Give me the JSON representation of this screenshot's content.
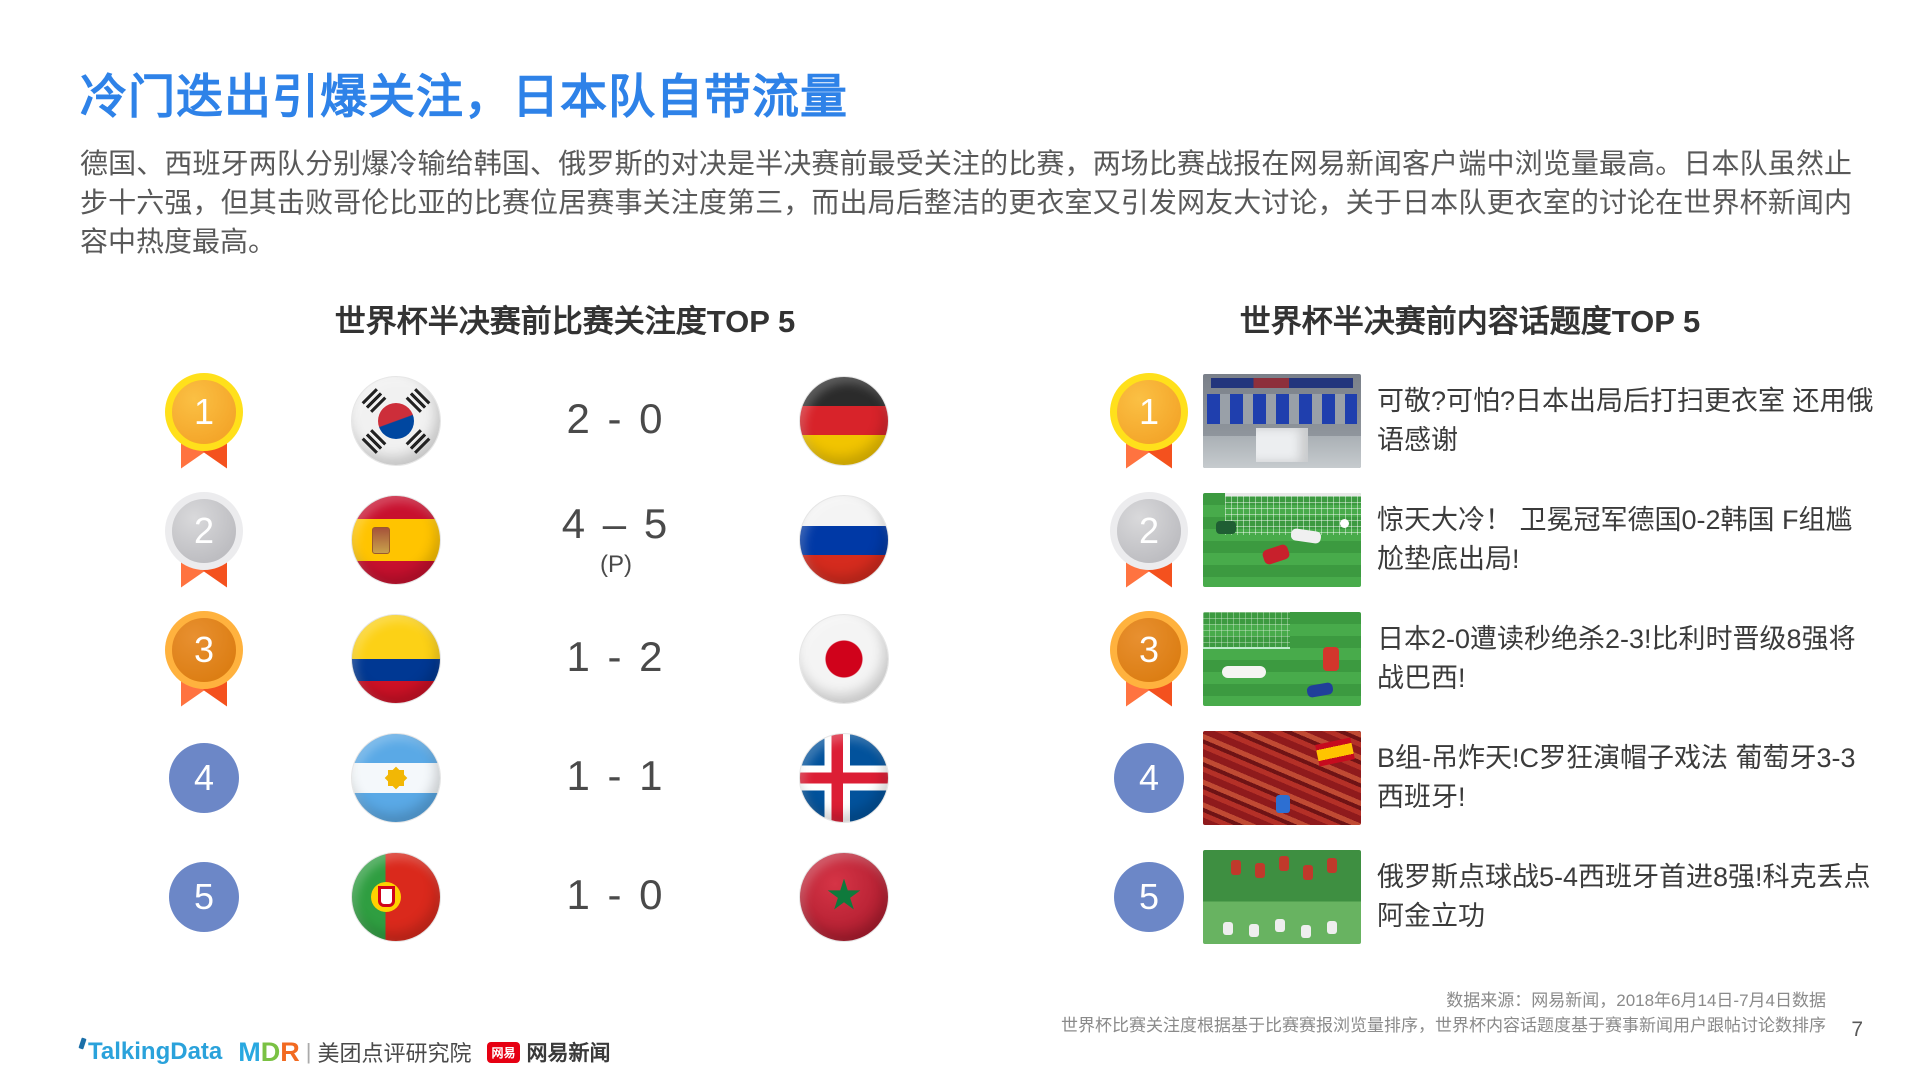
{
  "slide": {
    "title": "冷门迭出引爆关注，日本队自带流量",
    "paragraph": "德国、西班牙两队分别爆冷输给韩国、俄罗斯的对决是半决赛前最受关注的比赛，两场比赛战报在网易新闻客户端中浏览量最高。日本队虽然止步十六强，但其击败哥伦比亚的比赛位居赛事关注度第三，而出局后整洁的更衣室又引发网友大讨论，关于日本队更衣室的讨论在世界杯新闻内容中热度最高。",
    "page_number": "7"
  },
  "match_ranking": {
    "title": "世界杯半决赛前比赛关注度TOP 5",
    "rows": [
      {
        "rank": "1",
        "medal": "gold",
        "team_left": "south-korea",
        "score": "2 - 0",
        "score_note": "",
        "team_right": "germany"
      },
      {
        "rank": "2",
        "medal": "silver",
        "team_left": "spain",
        "score": "4 – 5",
        "score_note": "(P)",
        "team_right": "russia"
      },
      {
        "rank": "3",
        "medal": "bronze",
        "team_left": "colombia",
        "score": "1 - 2",
        "score_note": "",
        "team_right": "japan"
      },
      {
        "rank": "4",
        "medal": "blue",
        "team_left": "argentina",
        "score": "1 - 1",
        "score_note": "",
        "team_right": "iceland"
      },
      {
        "rank": "5",
        "medal": "blue",
        "team_left": "portugal",
        "score": "1 - 0",
        "score_note": "",
        "team_right": "morocco"
      }
    ]
  },
  "topic_ranking": {
    "title": "世界杯半决赛前内容话题度TOP 5",
    "rows": [
      {
        "rank": "1",
        "medal": "gold",
        "thumbnail": "japan-locker-room",
        "headline": "可敬?可怕?日本出局后打扫更衣室 还用俄语感谢"
      },
      {
        "rank": "2",
        "medal": "silver",
        "thumbnail": "germany-korea-goal",
        "headline": "惊天大冷！ 卫冕冠军德国0-2韩国 F组尴尬垫底出局!"
      },
      {
        "rank": "3",
        "medal": "bronze",
        "thumbnail": "japan-belgium-goal",
        "headline": "日本2-0遭读秒绝杀2-3!比利时晋级8强将战巴西!"
      },
      {
        "rank": "4",
        "medal": "blue",
        "thumbnail": "portugal-spain-fans",
        "headline": "B组-吊炸天!C罗狂演帽子戏法 葡萄牙3-3西班牙!"
      },
      {
        "rank": "5",
        "medal": "blue",
        "thumbnail": "russia-spain-celebration",
        "headline": "俄罗斯点球战5-4西班牙首进8强!科克丢点阿金立功"
      }
    ]
  },
  "footer": {
    "source_line1": "数据来源：网易新闻，2018年6月14日-7月4日数据",
    "source_line2": "世界杯比赛关注度根据基于比赛赛报浏览量排序，世界杯内容话题度基于赛事新闻用户跟帖讨论数排序",
    "logos": {
      "talkingdata": "TalkingData",
      "mdr_m": "M",
      "mdr_d": "D",
      "mdr_r": "R",
      "mdr_divider": "|",
      "mdr_label": "美团点评研究院",
      "netease_badge": "网易",
      "netease_label": "网易新闻"
    }
  },
  "colors": {
    "title_blue": "#2E82E8",
    "body_gray": "#595959",
    "medal_gold": "#F5A72B",
    "medal_gold_ring": "#FFE01B",
    "medal_silver": "#C2C2C6",
    "medal_silver_ring": "#ECECEE",
    "medal_bronze": "#DC7E14",
    "medal_bronze_ring": "#FFB23E",
    "ribbon_red": "#F4511E",
    "rank_blue": "#6C87C7"
  }
}
